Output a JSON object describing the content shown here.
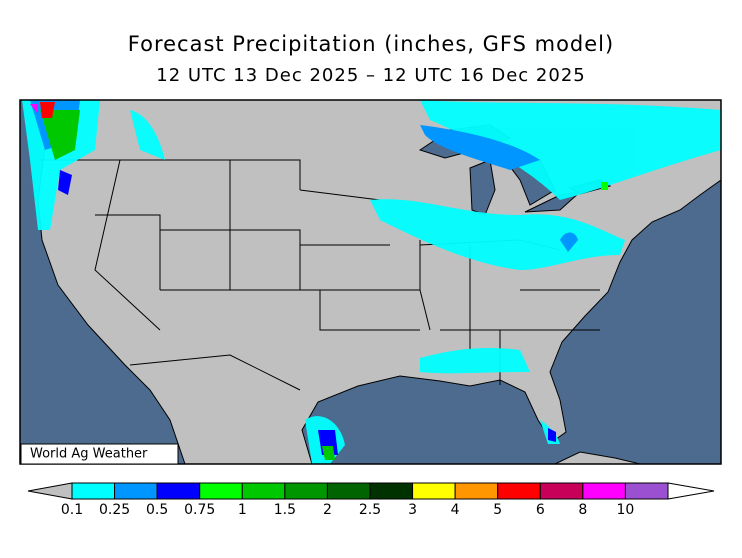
{
  "header": {
    "title": "Forecast Precipitation (inches, GFS model)",
    "subtitle": "12 UTC 13 Dec 2025 – 12 UTC 16 Dec 2025"
  },
  "credit": "World Ag Weather",
  "legend": {
    "labels": [
      "0.1",
      "0.25",
      "0.5",
      "0.75",
      "1",
      "1.5",
      "2",
      "2.5",
      "3",
      "4",
      "5",
      "6",
      "8",
      "10"
    ],
    "colors": [
      "#00ffff",
      "#0096ff",
      "#0000ff",
      "#00ff00",
      "#00c800",
      "#009600",
      "#006400",
      "#003200",
      "#ffff00",
      "#ff9600",
      "#ff0000",
      "#c8005a",
      "#ff00ff",
      "#9b50d2"
    ],
    "below_color": "#c0c0c0",
    "above_color": "#ffffff"
  }
}
